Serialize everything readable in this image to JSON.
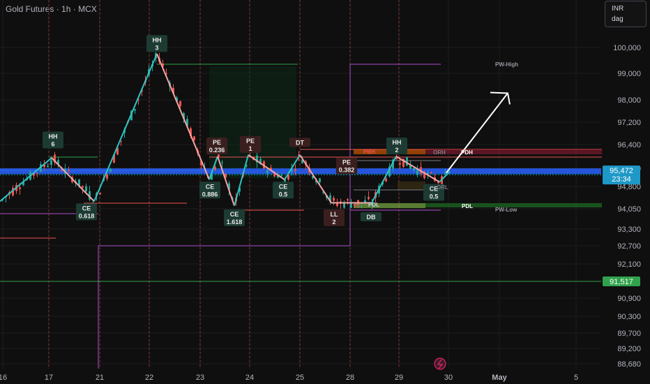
{
  "header": {
    "symbol": "Gold Futures",
    "interval": "1h",
    "exchange": "MCX",
    "separator": " · "
  },
  "top_right_buttons": [
    {
      "label": "INR"
    },
    {
      "label": "dag"
    }
  ],
  "colors": {
    "background": "#0f0f0f",
    "grid": "#1c1c1c",
    "day_separator": "#b23a3a",
    "up_candle": "#26a69a",
    "down_candle": "#ef5350",
    "zigzag_up": "#2ec4c4",
    "zigzag_down": "#f3a5a5",
    "price_line": "#2962ff",
    "current_price_tag": "#1e98c7",
    "level_91517": "#31a24c",
    "range_box": "#b04ccd",
    "arrow": "#ffffff"
  },
  "chart_data": {
    "type": "candlestick",
    "title": "Gold Futures · 1h · MCX",
    "y_axis": {
      "ticks": [
        100000,
        99000,
        98000,
        97200,
        96400,
        95600,
        94800,
        94050,
        93300,
        92700,
        92100,
        91517,
        90900,
        90300,
        89700,
        89200,
        88680
      ],
      "tick_labels": [
        "100,000",
        "99,000",
        "98,000",
        "97,200",
        "96,400",
        "95,600",
        "94,800",
        "94,050",
        "93,300",
        "92,700",
        "92,100",
        "91,517",
        "90,900",
        "90,300",
        "89,700",
        "89,200",
        "88,680"
      ],
      "range": [
        88400,
        100900
      ]
    },
    "x_axis": {
      "tick_labels": [
        "16",
        "17",
        "21",
        "22",
        "23",
        "24",
        "25",
        "28",
        "29",
        "30",
        "May",
        "5"
      ],
      "day_separators": [
        "17",
        "21",
        "22",
        "23",
        "24",
        "25",
        "28",
        "29"
      ]
    },
    "current_price": {
      "value": 95472,
      "label": "95,472",
      "countdown": "23:34"
    },
    "horizontal_levels": [
      {
        "label": "91,517",
        "value": 91517,
        "color": "#31a24c"
      }
    ],
    "zigzag": [
      {
        "bar": 0,
        "price": 94300
      },
      {
        "bar": 74,
        "price": 95950
      },
      {
        "bar": 135,
        "price": 94300
      },
      {
        "bar": 225,
        "price": 99750
      },
      {
        "bar": 300,
        "price": 95100
      },
      {
        "bar": 312,
        "price": 96000
      },
      {
        "bar": 336,
        "price": 94150
      },
      {
        "bar": 356,
        "price": 96050
      },
      {
        "bar": 408,
        "price": 95100
      },
      {
        "bar": 430,
        "price": 96050
      },
      {
        "bar": 475,
        "price": 94250
      },
      {
        "bar": 533,
        "price": 94250
      },
      {
        "bar": 568,
        "price": 96000
      },
      {
        "bar": 630,
        "price": 95000
      },
      {
        "bar": 645,
        "price": 95450
      }
    ],
    "swing_labels": [
      {
        "text": [
          "HH",
          "6"
        ],
        "bar": 76,
        "price": 96200,
        "pos": "above",
        "bg": "#1d3b33"
      },
      {
        "text": [
          "CE",
          "0.618"
        ],
        "bar": 124,
        "price": 94300,
        "pos": "below",
        "bg": "#1d3b33"
      },
      {
        "text": [
          "HH",
          "3"
        ],
        "bar": 225,
        "price": 99750,
        "pos": "above",
        "bg": "#1d3b33"
      },
      {
        "text": [
          "PE",
          "0.236"
        ],
        "bar": 311,
        "price": 96000,
        "pos": "above",
        "bg": "#3b1f1f"
      },
      {
        "text": [
          "CE",
          "0.886"
        ],
        "bar": 301,
        "price": 95100,
        "pos": "below",
        "bg": "#1d3b33"
      },
      {
        "text": [
          "CE",
          "1.618"
        ],
        "bar": 336,
        "price": 94100,
        "pos": "below",
        "bg": "#1d3b33"
      },
      {
        "text": [
          "PE",
          "1"
        ],
        "bar": 359,
        "price": 96050,
        "pos": "above",
        "bg": "#3b1f1f"
      },
      {
        "text": [
          "CE",
          "0.5"
        ],
        "bar": 406,
        "price": 95100,
        "pos": "below",
        "bg": "#1d3b33"
      },
      {
        "text": [
          "DT"
        ],
        "bar": 430,
        "price": 96250,
        "pos": "above",
        "bg": "#3b1f1f"
      },
      {
        "text": [
          "PE",
          "0.382"
        ],
        "bar": 497,
        "price": 95250,
        "pos": "above",
        "bg": "#3b1f1f"
      },
      {
        "text": [
          "LL",
          "2"
        ],
        "bar": 479,
        "price": 94100,
        "pos": "below",
        "bg": "#3b1f1f"
      },
      {
        "text": [
          "DB"
        ],
        "bar": 532,
        "price": 94000,
        "pos": "below",
        "bg": "#1d3b33"
      },
      {
        "text": [
          "HH",
          "2"
        ],
        "bar": 569,
        "price": 96000,
        "pos": "above",
        "bg": "#1d3b33"
      },
      {
        "text": [
          "CE",
          "0.5"
        ],
        "bar": 622,
        "price": 95000,
        "pos": "below",
        "bg": "#1d3b33"
      }
    ],
    "zone_labels": [
      {
        "text": "PBH",
        "color": "#ef5350"
      },
      {
        "text": "ORH",
        "color": "#787b86"
      },
      {
        "text": "PDH",
        "color": "#ffffff"
      },
      {
        "text": "ORL",
        "color": "#787b86"
      },
      {
        "text": "PDL",
        "color": "#ffffff"
      },
      {
        "text": "PDL",
        "color": "#d1d4dc"
      },
      {
        "text": "PW-High",
        "color": "#9598a1"
      },
      {
        "text": "PW-Low",
        "color": "#9598a1"
      }
    ],
    "arrow": {
      "from": {
        "bar": 640,
        "price": 95400
      },
      "to": {
        "bar": 728,
        "price": 98250
      }
    },
    "grid": true,
    "legend": "none"
  }
}
